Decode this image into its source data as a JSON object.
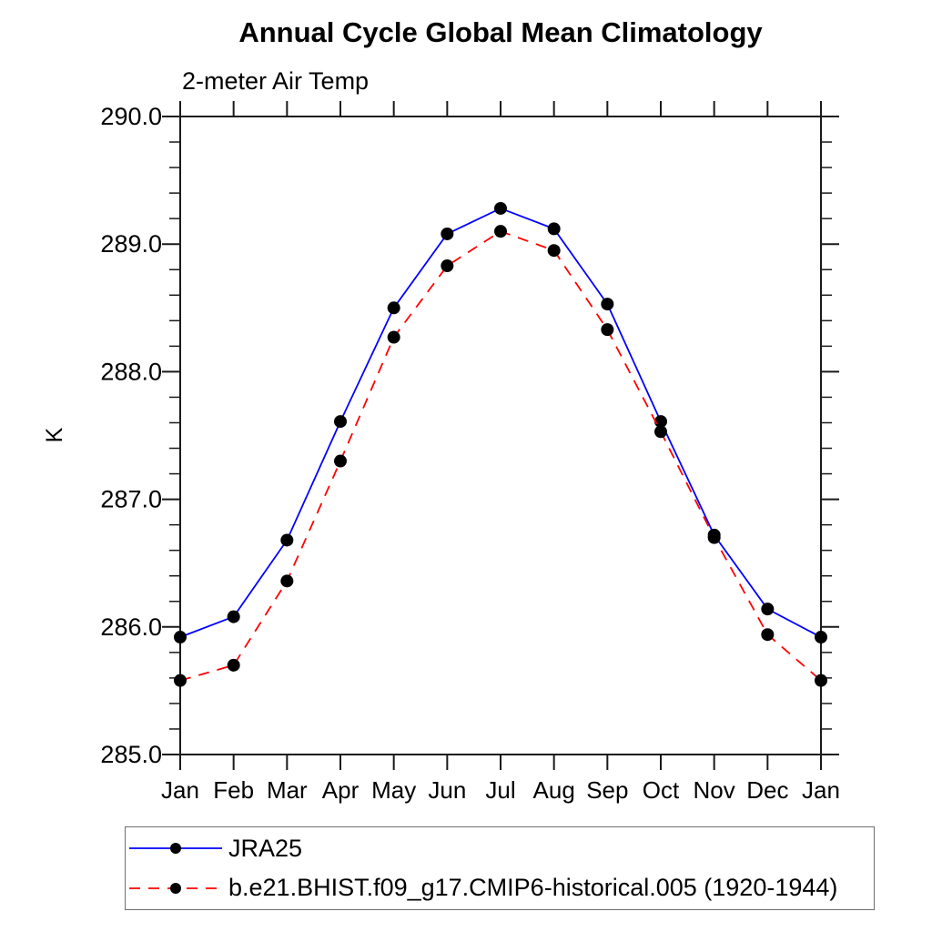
{
  "title": "Annual Cycle Global Mean Climatology",
  "subtitle": "2-meter Air Temp",
  "colors": {
    "series1_blue": "#0000ff",
    "series2_red": "#ff0000",
    "marker_black": "#000000",
    "axis": "#1a1a1a"
  },
  "legend": {
    "entries": [
      {
        "label": "JRA25",
        "line_style": "solid",
        "color": "#0000ff"
      },
      {
        "label": "b.e21.BHIST.f09_g17.CMIP6-historical.005 (1920-1944)",
        "line_style": "dashed",
        "color": "#ff0000"
      }
    ]
  },
  "chart_data": {
    "type": "line",
    "title": "Annual Cycle Global Mean Climatology",
    "subtitle": "2-meter Air Temp",
    "xlabel": "",
    "ylabel": "K",
    "x_categories": [
      "Jan",
      "Feb",
      "Mar",
      "Apr",
      "May",
      "Jun",
      "Jul",
      "Aug",
      "Sep",
      "Oct",
      "Nov",
      "Dec",
      "Jan"
    ],
    "ylim": [
      285.0,
      290.0
    ],
    "y_major_step": 1.0,
    "y_minor_step": 0.2,
    "y_tick_labels": [
      "285.0",
      "286.0",
      "287.0",
      "288.0",
      "289.0",
      "290.0"
    ],
    "grid": false,
    "legend_position": "bottom-left-box",
    "marker": "filled-circle",
    "series": [
      {
        "name": "JRA25",
        "color": "#0000ff",
        "style": "solid",
        "values": [
          285.92,
          286.08,
          286.68,
          287.61,
          288.5,
          289.08,
          289.28,
          289.12,
          288.53,
          287.61,
          286.72,
          286.14,
          285.92
        ]
      },
      {
        "name": "b.e21.BHIST.f09_g17.CMIP6-historical.005 (1920-1944)",
        "color": "#ff0000",
        "style": "dashed",
        "values": [
          285.58,
          285.7,
          286.36,
          287.3,
          288.27,
          288.83,
          289.1,
          288.95,
          288.33,
          287.53,
          286.7,
          285.94,
          285.58
        ]
      }
    ]
  }
}
